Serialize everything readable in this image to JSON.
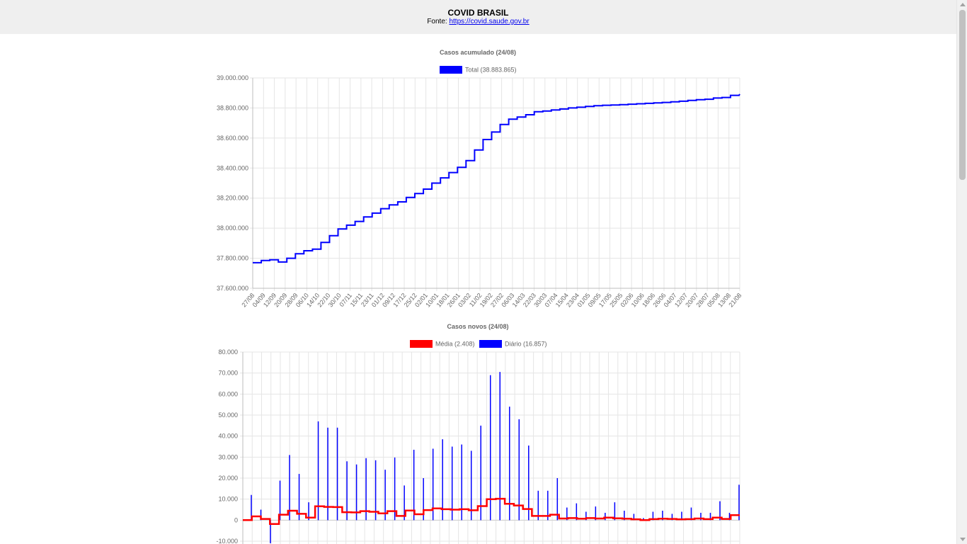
{
  "header": {
    "title": "COVID BRASIL",
    "source_label": "Fonte:",
    "source_link": "https://covid.saude.gov.br"
  },
  "chart_data": [
    {
      "type": "line",
      "title": "Casos acumulado (24/08)",
      "legend_position": "top",
      "ylim": [
        37600000,
        39000000
      ],
      "yticks": [
        "39.000.000",
        "38.800.000",
        "38.600.000",
        "38.400.000",
        "38.200.000",
        "38.000.000",
        "37.800.000",
        "37.600.000"
      ],
      "ytick_values": [
        39000000,
        38800000,
        38600000,
        38400000,
        38200000,
        38000000,
        37800000,
        37600000
      ],
      "x_tick_labels": [
        "27/08",
        "04/09",
        "12/09",
        "20/09",
        "28/09",
        "06/10",
        "14/10",
        "22/10",
        "30/10",
        "07/11",
        "15/11",
        "23/11",
        "01/12",
        "09/12",
        "17/12",
        "25/12",
        "02/01",
        "10/01",
        "18/01",
        "26/01",
        "03/02",
        "11/02",
        "19/02",
        "27/02",
        "06/03",
        "14/03",
        "22/03",
        "30/03",
        "07/04",
        "15/04",
        "23/04",
        "01/05",
        "09/05",
        "17/05",
        "25/05",
        "02/06",
        "10/06",
        "18/06",
        "26/06",
        "04/07",
        "12/07",
        "20/07",
        "28/07",
        "05/08",
        "13/08",
        "21/08"
      ],
      "grid": true,
      "colors": {
        "series": "#0000ff"
      },
      "series": [
        {
          "name": "Total (38.883.865)",
          "step_values": [
            37770000,
            37785000,
            37790000,
            37775000,
            37800000,
            37830000,
            37850000,
            37860000,
            37905000,
            37950000,
            37995000,
            38020000,
            38045000,
            38075000,
            38100000,
            38130000,
            38155000,
            38175000,
            38205000,
            38230000,
            38260000,
            38300000,
            38335000,
            38370000,
            38405000,
            38450000,
            38520000,
            38590000,
            38640000,
            38690000,
            38725000,
            38740000,
            38755000,
            38775000,
            38780000,
            38787000,
            38793000,
            38800000,
            38805000,
            38810000,
            38815000,
            38818000,
            38820000,
            38822000,
            38825000,
            38828000,
            38831000,
            38834000,
            38837000,
            38841000,
            38845000,
            38850000,
            38855000,
            38858000,
            38866000,
            38870000,
            38884000
          ]
        }
      ]
    },
    {
      "type": "bar",
      "title": "Casos novos (24/08)",
      "legend_position": "top",
      "ylim": [
        -10000,
        80000
      ],
      "yticks": [
        "80.000",
        "70.000",
        "60.000",
        "50.000",
        "40.000",
        "30.000",
        "20.000",
        "10.000",
        "0",
        "-10.000"
      ],
      "ytick_values": [
        80000,
        70000,
        60000,
        50000,
        40000,
        30000,
        20000,
        10000,
        0,
        -10000
      ],
      "grid": true,
      "colors": {
        "media": "#ff0000",
        "diario": "#0000ff"
      },
      "series": [
        {
          "name": "Média (2.408)",
          "type": "line",
          "step_values": [
            0,
            1800,
            600,
            -1800,
            2600,
            4500,
            3000,
            1200,
            6600,
            6300,
            6200,
            3800,
            3700,
            4300,
            4000,
            3200,
            4300,
            2000,
            4600,
            2800,
            4800,
            5600,
            5200,
            5000,
            5200,
            4700,
            6700,
            10000,
            10200,
            7800,
            7000,
            5300,
            2000,
            2000,
            2600,
            800,
            1000,
            700,
            1000,
            800,
            1200,
            900,
            700,
            400,
            0,
            500,
            700,
            600,
            400,
            500,
            800,
            500,
            1200,
            600,
            2408
          ]
        },
        {
          "name": "Diário (16.857)",
          "type": "bar",
          "values": [
            12000,
            5000,
            -11000,
            18800,
            31000,
            22000,
            8500,
            47000,
            44000,
            44000,
            28000,
            26500,
            29500,
            28500,
            24000,
            29800,
            16500,
            33500,
            20000,
            34000,
            38500,
            35000,
            36000,
            33000,
            45000,
            69000,
            70500,
            54000,
            48000,
            35500,
            14000,
            14000,
            20000,
            6000,
            8000,
            4000,
            6500,
            3500,
            8500,
            4500,
            3000,
            1000,
            4000,
            4500,
            3000,
            4000,
            6000,
            3500,
            3500,
            9000,
            3500,
            16857
          ]
        }
      ]
    }
  ]
}
